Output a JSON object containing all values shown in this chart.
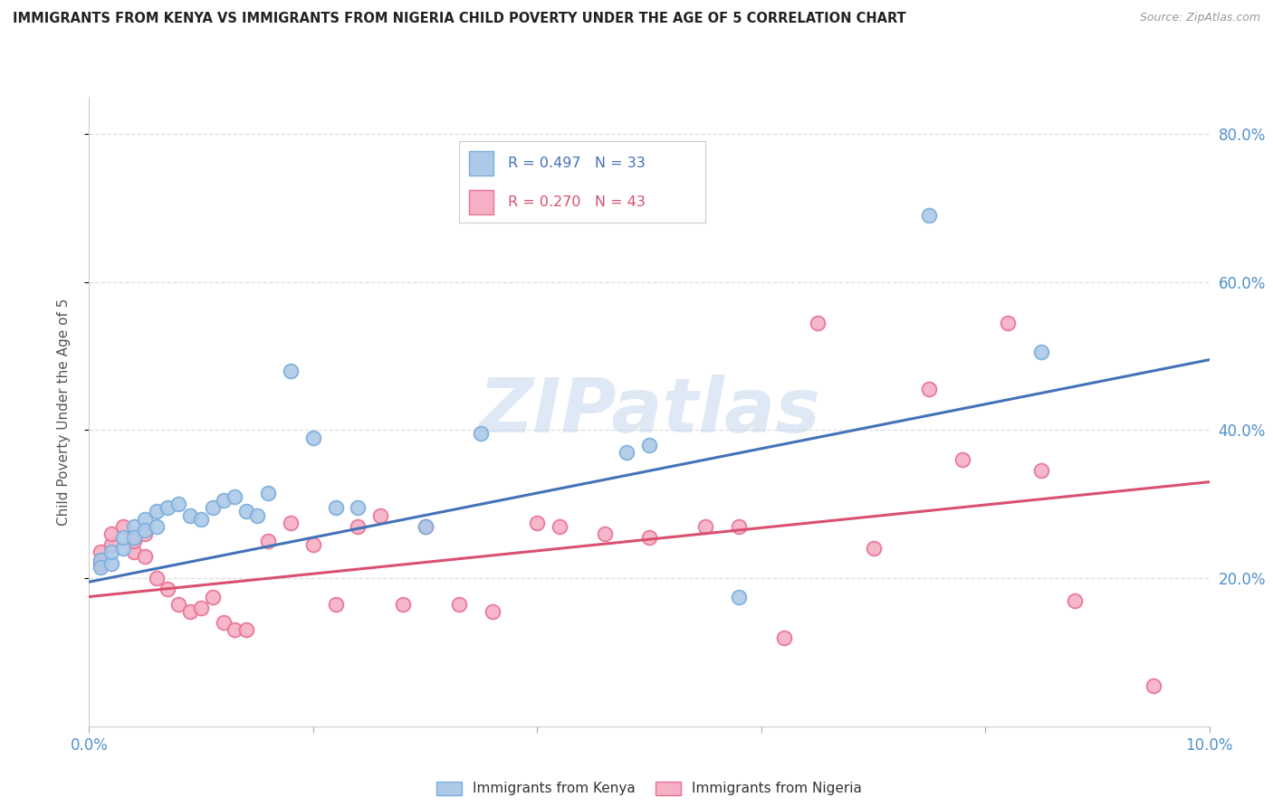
{
  "title": "IMMIGRANTS FROM KENYA VS IMMIGRANTS FROM NIGERIA CHILD POVERTY UNDER THE AGE OF 5 CORRELATION CHART",
  "source": "Source: ZipAtlas.com",
  "ylabel": "Child Poverty Under the Age of 5",
  "legend1_R": "0.497",
  "legend1_N": "33",
  "legend2_R": "0.270",
  "legend2_N": "43",
  "kenya_color": "#adc9e8",
  "nigeria_color": "#f5b0c5",
  "kenya_edge": "#7aaedb",
  "nigeria_edge": "#e87090",
  "trend_kenya": "#4472b8",
  "trend_nigeria": "#d95070",
  "watermark": "ZIPatlas",
  "kenya_x": [
    0.001,
    0.001,
    0.002,
    0.002,
    0.003,
    0.003,
    0.004,
    0.004,
    0.005,
    0.005,
    0.006,
    0.006,
    0.007,
    0.008,
    0.009,
    0.01,
    0.011,
    0.012,
    0.013,
    0.014,
    0.015,
    0.016,
    0.018,
    0.02,
    0.022,
    0.024,
    0.03,
    0.035,
    0.048,
    0.05,
    0.058,
    0.075,
    0.085
  ],
  "kenya_y": [
    0.225,
    0.215,
    0.22,
    0.235,
    0.24,
    0.255,
    0.27,
    0.255,
    0.28,
    0.265,
    0.29,
    0.27,
    0.295,
    0.3,
    0.285,
    0.28,
    0.295,
    0.305,
    0.31,
    0.29,
    0.285,
    0.315,
    0.48,
    0.39,
    0.295,
    0.295,
    0.27,
    0.395,
    0.37,
    0.38,
    0.175,
    0.69,
    0.505
  ],
  "nigeria_x": [
    0.001,
    0.001,
    0.002,
    0.002,
    0.003,
    0.004,
    0.004,
    0.005,
    0.005,
    0.006,
    0.007,
    0.008,
    0.009,
    0.01,
    0.011,
    0.012,
    0.013,
    0.014,
    0.016,
    0.018,
    0.02,
    0.022,
    0.024,
    0.026,
    0.028,
    0.03,
    0.033,
    0.036,
    0.04,
    0.042,
    0.046,
    0.05,
    0.055,
    0.058,
    0.062,
    0.065,
    0.07,
    0.075,
    0.078,
    0.082,
    0.085,
    0.088,
    0.095
  ],
  "nigeria_y": [
    0.235,
    0.22,
    0.245,
    0.26,
    0.27,
    0.235,
    0.25,
    0.23,
    0.26,
    0.2,
    0.185,
    0.165,
    0.155,
    0.16,
    0.175,
    0.14,
    0.13,
    0.13,
    0.25,
    0.275,
    0.245,
    0.165,
    0.27,
    0.285,
    0.165,
    0.27,
    0.165,
    0.155,
    0.275,
    0.27,
    0.26,
    0.255,
    0.27,
    0.27,
    0.12,
    0.545,
    0.24,
    0.455,
    0.36,
    0.545,
    0.345,
    0.17,
    0.055
  ],
  "xlim": [
    0.0,
    0.1
  ],
  "ylim": [
    0.0,
    0.85
  ],
  "y_ticks_right": [
    0.2,
    0.4,
    0.6,
    0.8
  ],
  "background_color": "#ffffff",
  "grid_color": "#dddddd",
  "bottom_legend_labels": [
    "Immigrants from Kenya",
    "Immigrants from Nigeria"
  ]
}
